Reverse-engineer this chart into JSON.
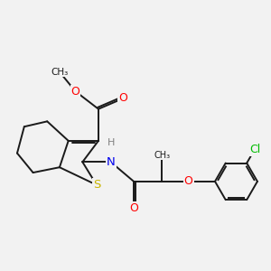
{
  "background_color": "#f2f2f2",
  "bond_color": "#1a1a1a",
  "bond_width": 1.4,
  "atom_colors": {
    "S": "#c8b400",
    "O": "#ff0000",
    "N": "#0000ee",
    "Cl": "#00bb00",
    "H": "#808080",
    "C": "#1a1a1a"
  },
  "font_size": 8.5
}
